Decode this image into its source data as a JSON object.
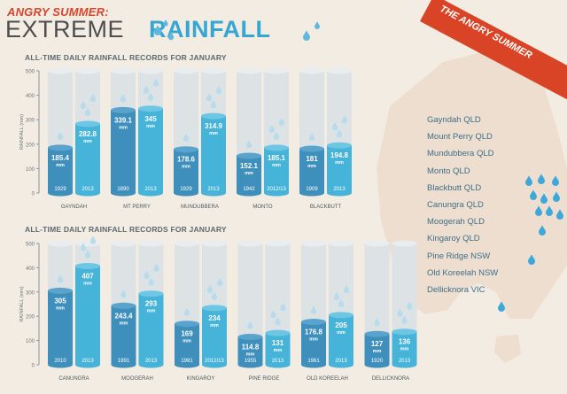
{
  "header": {
    "small_title": "ANGRY SUMMER:",
    "title_main": "EXTREME",
    "title_accent": "RAINFALL",
    "banner": "THE ANGRY SUMMER"
  },
  "colors": {
    "old_bar": "#3f8fbd",
    "new_bar": "#46b3d8",
    "empty_cyl": "#dde2e5",
    "banner": "#d94426"
  },
  "legend_locations": [
    "Gayndah QLD",
    "Mount Perry QLD",
    "Mundubbera QLD",
    "Monto QLD",
    "Blackbutt QLD",
    "Canungra QLD",
    "Moogerah QLD",
    "Kingaroy QLD",
    "Pine Ridge NSW",
    "Old Koreelah NSW",
    "Dellicknora VIC"
  ],
  "chart_data": [
    {
      "type": "bar",
      "title": "ALL-TIME DAILY RAINFALL RECORDS FOR JANUARY",
      "ylabel": "RAINFALL (mm)",
      "ylim": [
        0,
        500
      ],
      "yticks": [
        "0",
        "100",
        "200",
        "300",
        "400",
        "500"
      ],
      "categories": [
        "GAYNDAH",
        "MT PERRY",
        "MUNDUBBERA",
        "MONTO",
        "BLACKBUTT"
      ],
      "series": [
        {
          "values": [
            185.4,
            339.1,
            178.6,
            152.1,
            181
          ],
          "labels": [
            "185.4",
            "339.1",
            "178.6",
            "152.1",
            "181"
          ],
          "years": [
            "1929",
            "1890",
            "1929",
            "1942",
            "1909"
          ]
        },
        {
          "values": [
            282.8,
            345,
            314.9,
            185.1,
            194.8
          ],
          "labels": [
            "282.8",
            "345",
            "314.9",
            "185.1",
            "194.8"
          ],
          "years": [
            "2013",
            "2013",
            "2013",
            "2012/13",
            "2013"
          ]
        }
      ],
      "unit": "mm"
    },
    {
      "type": "bar",
      "title": "ALL-TIME DAILY RAINFALL RECORDS FOR JANUARY",
      "ylabel": "RAINFALL (mm)",
      "ylim": [
        0,
        500
      ],
      "yticks": [
        "0",
        "100",
        "200",
        "300",
        "400",
        "500"
      ],
      "categories": [
        "CANUNGRA",
        "MOOGERAH",
        "KINGAROY",
        "PINE RIDGE",
        "OLD KOREELAH",
        "DELLICKNORA"
      ],
      "series": [
        {
          "values": [
            305,
            243.4,
            169,
            114.8,
            176.8,
            127
          ],
          "labels": [
            "305",
            "243.4",
            "169",
            "114.8",
            "176.8",
            "127"
          ],
          "years": [
            "2010",
            "1991",
            "1981",
            "1955",
            "1961",
            "1920"
          ]
        },
        {
          "values": [
            407,
            293,
            234,
            131,
            205,
            136
          ],
          "labels": [
            "407",
            "293",
            "234",
            "131",
            "205",
            "136"
          ],
          "years": [
            "2013",
            "2013",
            "2012/13",
            "2013",
            "2013",
            "2013"
          ]
        }
      ],
      "unit": "mm"
    }
  ]
}
